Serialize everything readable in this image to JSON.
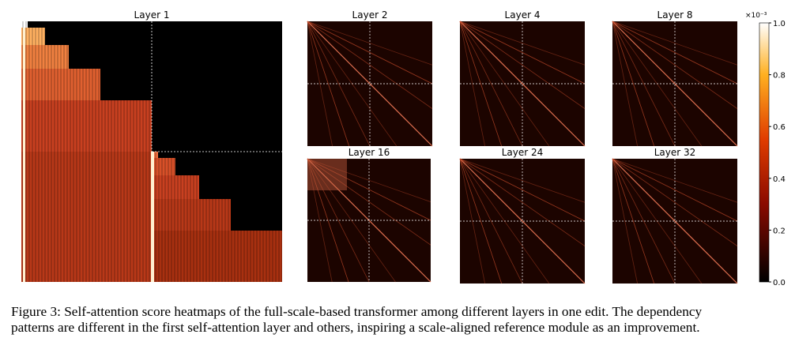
{
  "figure": {
    "panels": [
      {
        "title": "Layer 1"
      },
      {
        "title": "Layer 2"
      },
      {
        "title": "Layer 4"
      },
      {
        "title": "Layer 8"
      },
      {
        "title": "Layer 16"
      },
      {
        "title": "Layer 24"
      },
      {
        "title": "Layer 32"
      }
    ],
    "colorbar": {
      "multiplier": "×10⁻³",
      "lim": [
        0,
        1
      ],
      "ticks": [
        {
          "value": 0,
          "label": "0.0"
        },
        {
          "value": 0.2,
          "label": "0.2"
        },
        {
          "value": 0.4,
          "label": "0.4"
        },
        {
          "value": 0.6,
          "label": "0.6"
        },
        {
          "value": 0.8,
          "label": "0.8"
        },
        {
          "value": 1,
          "label": "1.0"
        }
      ]
    }
  },
  "caption": {
    "lines": [
      "Figure 3: Self-attention score heatmaps of the full-scale-based transformer among different layers in one edit. The dependency",
      "patterns are different in the first self-attention layer and others, inspiring a scale-aligned reference module as an improvement."
    ]
  }
}
